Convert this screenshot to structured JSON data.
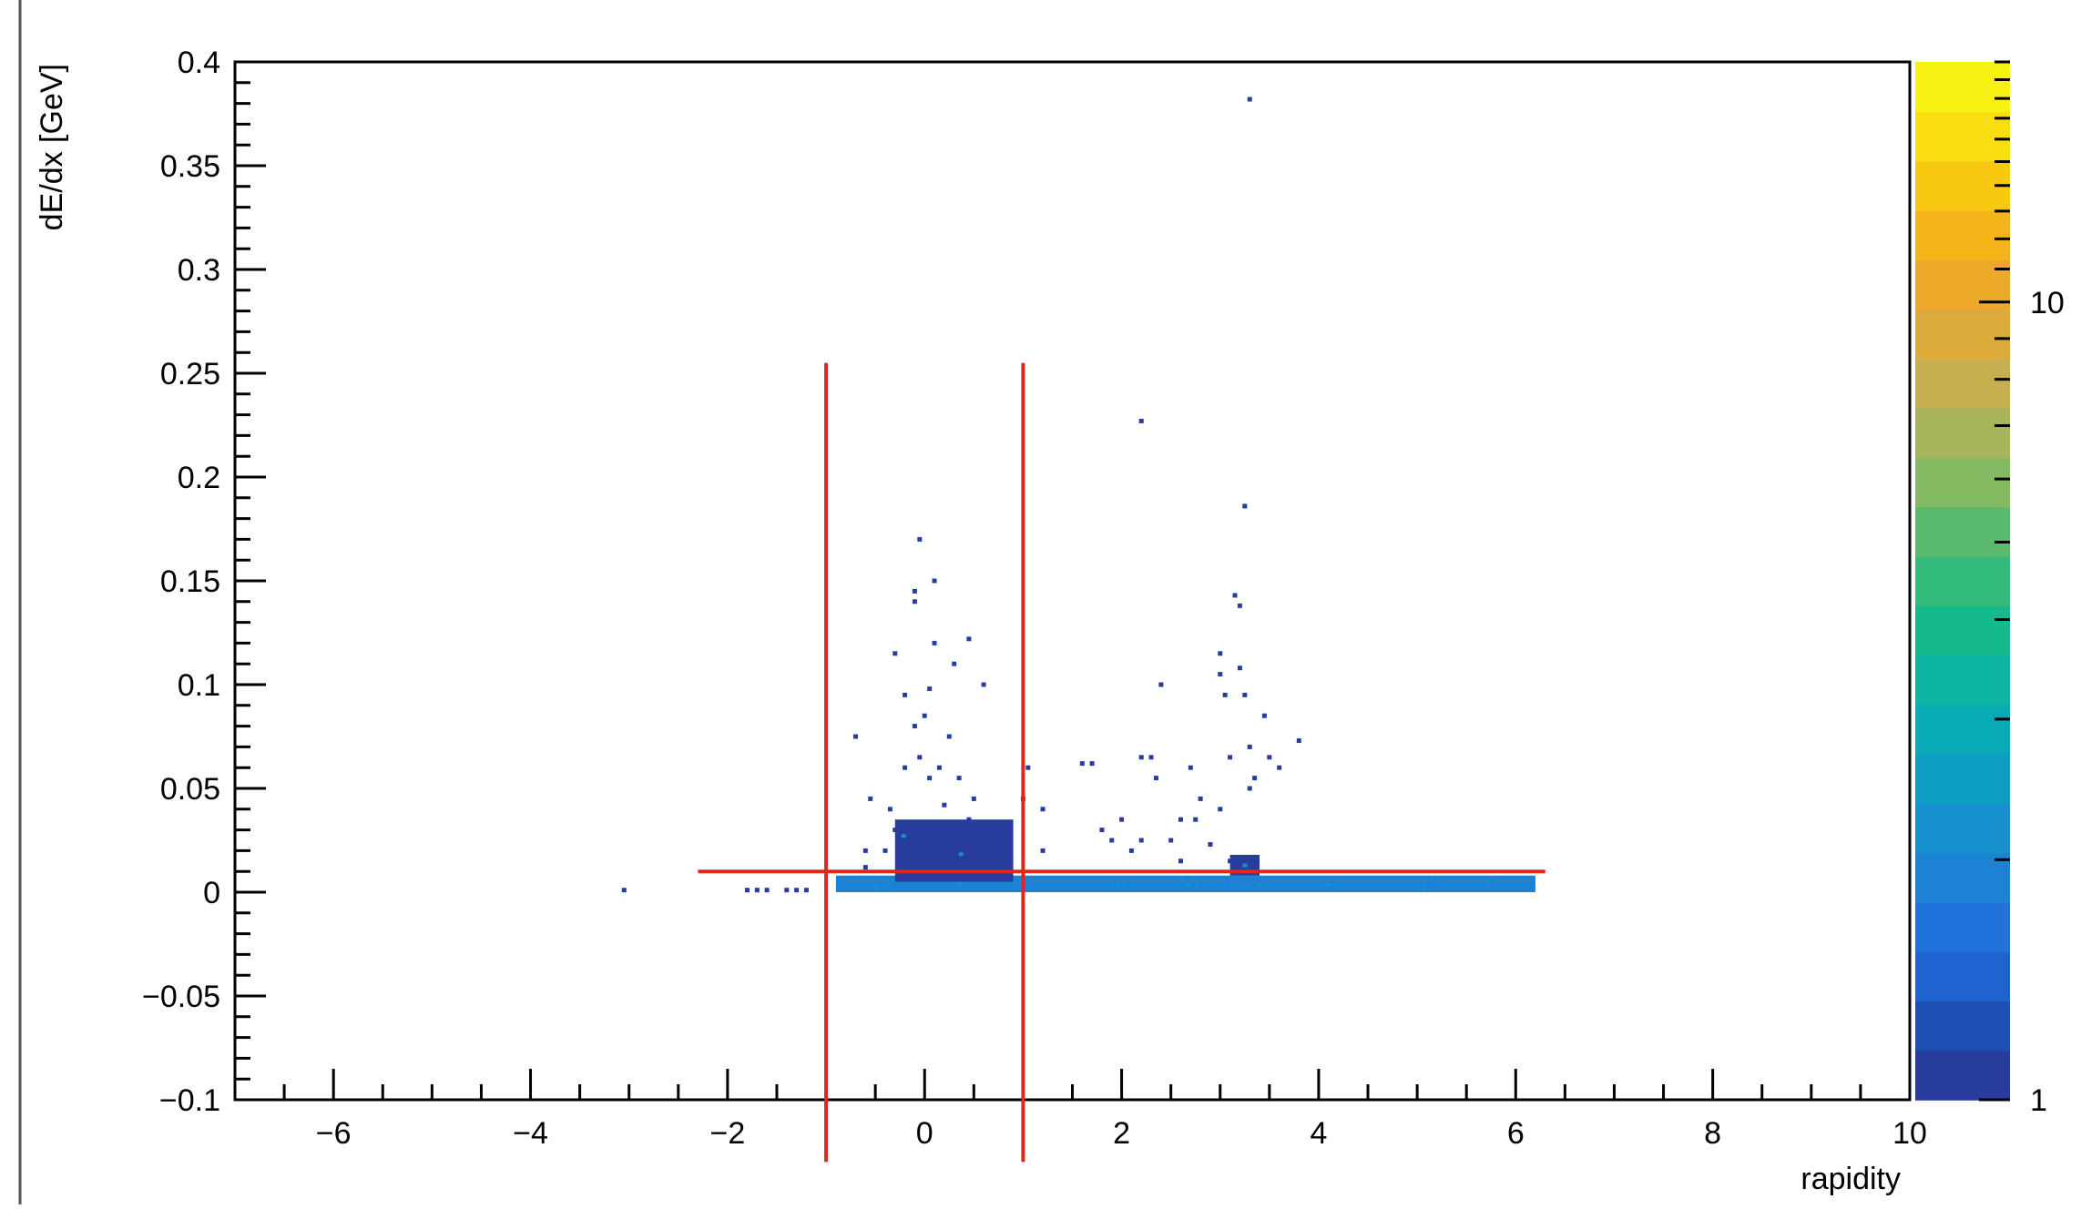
{
  "chart_data": {
    "type": "heatmap",
    "title": "",
    "xlabel": "rapidity",
    "ylabel": "dE/dx [GeV]",
    "xlim": [
      -7,
      10
    ],
    "ylim": [
      -0.1,
      0.4
    ],
    "x_ticks": [
      -6,
      -4,
      -2,
      0,
      2,
      4,
      6,
      8,
      10
    ],
    "x_tick_labels": [
      "−6",
      "−4",
      "−2",
      "0",
      "2",
      "4",
      "6",
      "8",
      "10"
    ],
    "y_ticks": [
      -0.1,
      -0.05,
      0,
      0.05,
      0.1,
      0.15,
      0.2,
      0.25,
      0.3,
      0.35,
      0.4
    ],
    "y_tick_labels": [
      "−0.1",
      "−0.05",
      "0",
      "0.05",
      "0.1",
      "0.15",
      "0.2",
      "0.25",
      "0.3",
      "0.35",
      "0.4"
    ],
    "grid": false,
    "colorbar": {
      "scale": "log",
      "range": [
        1,
        20
      ],
      "tick_labels": [
        "1",
        "10"
      ],
      "palette": [
        "#283c9e",
        "#1e4fb5",
        "#1f63d1",
        "#2172db",
        "#1c82d4",
        "#1690cc",
        "#0e9dc2",
        "#08aab6",
        "#0db3a3",
        "#14b98c",
        "#33bb7a",
        "#5bbb6c",
        "#83ba62",
        "#a9b55a",
        "#c7ae4e",
        "#dcab3c",
        "#eda92a",
        "#f5b41a",
        "#f8c812",
        "#f9de12",
        "#f8f114"
      ]
    },
    "bins": [
      [
        -3.05,
        0.001,
        1
      ],
      [
        -1.8,
        0.001,
        1
      ],
      [
        -1.7,
        0.001,
        1
      ],
      [
        -1.6,
        0.001,
        1
      ],
      [
        -1.4,
        0.001,
        1
      ],
      [
        -1.3,
        0.001,
        1
      ],
      [
        -1.2,
        0.001,
        1
      ],
      [
        -0.7,
        0.075,
        1
      ],
      [
        -0.6,
        0.02,
        1
      ],
      [
        -0.6,
        0.012,
        1
      ],
      [
        -0.55,
        0.045,
        1
      ],
      [
        -0.4,
        0.02,
        1
      ],
      [
        -0.35,
        0.04,
        1
      ],
      [
        -0.3,
        0.03,
        1
      ],
      [
        -0.3,
        0.115,
        1
      ],
      [
        -0.2,
        0.095,
        1
      ],
      [
        -0.2,
        0.06,
        1
      ],
      [
        -0.15,
        0.028,
        1
      ],
      [
        -0.1,
        0.14,
        1
      ],
      [
        -0.1,
        0.08,
        1
      ],
      [
        -0.05,
        0.065,
        1
      ],
      [
        0,
        0.085,
        1
      ],
      [
        0.05,
        0.098,
        1
      ],
      [
        0.05,
        0.055,
        1
      ],
      [
        0.1,
        0.12,
        1
      ],
      [
        0.1,
        0.15,
        1
      ],
      [
        0.15,
        0.06,
        1
      ],
      [
        0.2,
        0.042,
        1
      ],
      [
        0.25,
        0.075,
        1
      ],
      [
        0.3,
        0.11,
        1
      ],
      [
        0.35,
        0.055,
        1
      ],
      [
        0.45,
        0.122,
        1
      ],
      [
        0.45,
        0.035,
        1
      ],
      [
        0.5,
        0.045,
        1
      ],
      [
        0.6,
        0.1,
        1
      ],
      [
        0.7,
        0.015,
        1
      ],
      [
        -0.05,
        0.17,
        1
      ],
      [
        -0.1,
        0.145,
        1
      ],
      [
        1.0,
        0.045,
        1
      ],
      [
        1.05,
        0.06,
        1
      ],
      [
        1.2,
        0.04,
        1
      ],
      [
        1.2,
        0.02,
        1
      ],
      [
        1.6,
        0.062,
        1
      ],
      [
        1.7,
        0.062,
        1
      ],
      [
        1.8,
        0.03,
        1
      ],
      [
        1.9,
        0.025,
        1
      ],
      [
        2.0,
        0.035,
        1
      ],
      [
        2.1,
        0.02,
        1
      ],
      [
        2.2,
        0.065,
        1
      ],
      [
        2.2,
        0.025,
        1
      ],
      [
        2.3,
        0.065,
        1
      ],
      [
        2.35,
        0.055,
        1
      ],
      [
        2.4,
        0.1,
        1
      ],
      [
        2.5,
        0.025,
        1
      ],
      [
        2.6,
        0.035,
        1
      ],
      [
        2.6,
        0.015,
        1
      ],
      [
        2.7,
        0.06,
        1
      ],
      [
        2.8,
        0.045,
        1
      ],
      [
        2.9,
        0.023,
        1
      ],
      [
        3.0,
        0.04,
        1
      ],
      [
        3.0,
        0.115,
        1
      ],
      [
        3.0,
        0.105,
        1
      ],
      [
        3.05,
        0.095,
        1
      ],
      [
        3.1,
        0.065,
        1
      ],
      [
        3.1,
        0.015,
        1
      ],
      [
        3.15,
        0.143,
        1
      ],
      [
        3.2,
        0.138,
        1
      ],
      [
        3.2,
        0.108,
        1
      ],
      [
        3.25,
        0.095,
        1
      ],
      [
        3.3,
        0.07,
        1
      ],
      [
        3.3,
        0.05,
        1
      ],
      [
        3.35,
        0.055,
        1
      ],
      [
        3.45,
        0.085,
        1
      ],
      [
        3.5,
        0.065,
        1
      ],
      [
        3.6,
        0.06,
        1
      ],
      [
        3.8,
        0.073,
        1
      ],
      [
        2.75,
        0.035,
        1
      ],
      [
        3.3,
        0.382,
        1
      ],
      [
        2.2,
        0.227,
        1
      ],
      [
        3.25,
        0.186,
        1
      ]
    ],
    "dense_regions": [
      {
        "x_range": [
          -0.9,
          6.2
        ],
        "y_range": [
          0.0,
          0.008
        ],
        "count": 2
      },
      {
        "x_range": [
          -0.3,
          0.9
        ],
        "y_range": [
          0.005,
          0.035
        ],
        "count": 1
      },
      {
        "x_range": [
          3.1,
          3.4
        ],
        "y_range": [
          0.008,
          0.018
        ],
        "count": 1
      }
    ],
    "overlay_lines": [
      {
        "x": [
          -1,
          -1
        ],
        "y": [
          -0.13,
          0.255
        ],
        "color": "#e0271c"
      },
      {
        "x": [
          1,
          1
        ],
        "y": [
          -0.13,
          0.255
        ],
        "color": "#e0271c"
      },
      {
        "x": [
          -2.3,
          6.3
        ],
        "y": [
          0.01,
          0.01
        ],
        "color": "#e0271c"
      }
    ]
  }
}
